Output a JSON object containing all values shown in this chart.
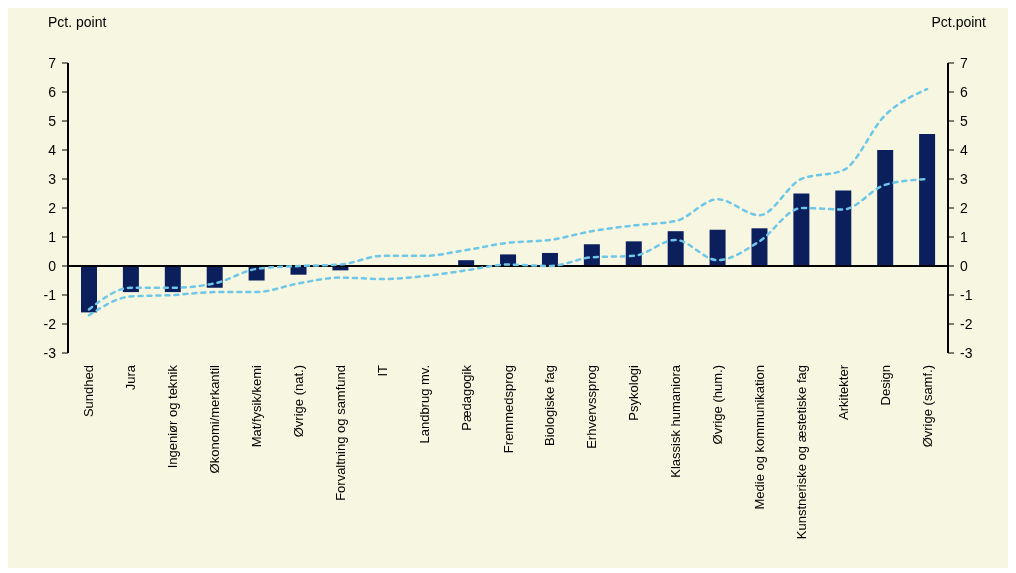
{
  "chart_data": {
    "type": "bar",
    "ylabel": "Pct. point",
    "y2label": "Pct.point",
    "categories": [
      "Sundhed",
      "Jura",
      "Ingeniør og teknik",
      "Økonomi/merkantil",
      "Mat/fysik/kemi",
      "Øvrige (nat.)",
      "Forvaltning og samfund",
      "IT",
      "Landbrug mv.",
      "Pædagogik",
      "Fremmedsprog",
      "Biologiske fag",
      "Erhvervssprog",
      "Psykologi",
      "Klassisk humaniora",
      "Øvrige (hum.)",
      "Medie og kommunikation",
      "Kunstneriske og æstetiske fag",
      "Arkitekter",
      "Design",
      "Øvrige (samf.)"
    ],
    "series": [
      {
        "color": "#0a1f5c",
        "values": [
          -1.6,
          -0.9,
          -0.9,
          -0.75,
          -0.5,
          -0.3,
          -0.15,
          0,
          0,
          0.2,
          0.4,
          0.45,
          0.75,
          0.85,
          1.2,
          1.25,
          1.3,
          2.5,
          2.6,
          4.0,
          4.55
        ]
      },
      {
        "type": "line",
        "color": "#6ec6e8",
        "line_style": "dashed",
        "marker": "none",
        "values": [
          -1.5,
          -0.75,
          -0.75,
          -0.6,
          -0.1,
          0,
          0.05,
          0.35,
          0.35,
          0.55,
          0.8,
          0.9,
          1.2,
          1.4,
          1.55,
          2.3,
          1.75,
          3.0,
          3.3,
          5.2,
          6.1
        ]
      },
      {
        "type": "line",
        "color": "#6ec6e8",
        "line_style": "dashed",
        "marker": "none",
        "values": [
          -1.7,
          -1.05,
          -1.0,
          -0.9,
          -0.9,
          -0.6,
          -0.4,
          -0.45,
          -0.35,
          -0.15,
          0.05,
          0.0,
          0.3,
          0.35,
          0.9,
          0.2,
          0.85,
          2.0,
          1.95,
          2.8,
          3.0
        ]
      }
    ],
    "ylim": [
      -3,
      7
    ],
    "yticks": [
      -3,
      -2,
      -1,
      0,
      1,
      2,
      3,
      4,
      5,
      6,
      7
    ],
    "y2lim": [
      -3,
      7
    ],
    "y2ticks": [
      -3,
      -2,
      -1,
      0,
      1,
      2,
      3,
      4,
      5,
      6,
      7
    ]
  }
}
